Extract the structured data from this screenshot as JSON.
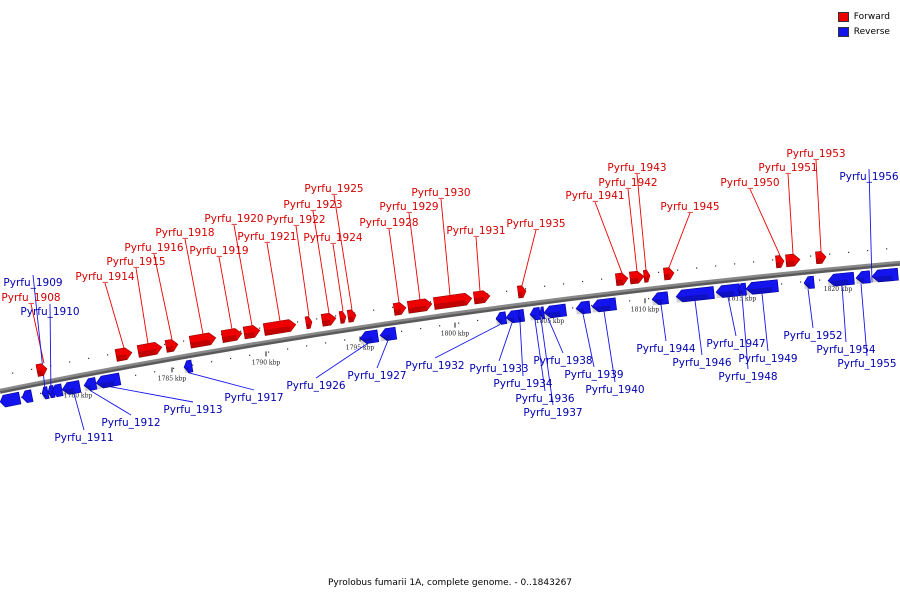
{
  "legend": {
    "forward_label": "Forward",
    "forward_color": "#ee0000",
    "reverse_label": "Reverse",
    "reverse_color": "#1414ee"
  },
  "caption": "Pyrolobus fumarii 1A, complete genome. - 0..1843267",
  "backbone_color": "#888888",
  "ticks": [
    {
      "label": "1780 kbp",
      "kbp": 1780
    },
    {
      "label": "1785 kbp",
      "kbp": 1785
    },
    {
      "label": "1790 kbp",
      "kbp": 1790
    },
    {
      "label": "1795 kbp",
      "kbp": 1795
    },
    {
      "label": "1800 kbp",
      "kbp": 1800
    },
    {
      "label": "1805 kbp",
      "kbp": 1805
    },
    {
      "label": "1810 kbp",
      "kbp": 1810
    },
    {
      "label": "1815 kbp",
      "kbp": 1815
    },
    {
      "label": "1820 kbp",
      "kbp": 1820
    }
  ],
  "genes": [
    {
      "name": "Pyrfu_1908",
      "strand": "forward"
    },
    {
      "name": "Pyrfu_1909",
      "strand": "reverse"
    },
    {
      "name": "Pyrfu_1910",
      "strand": "reverse"
    },
    {
      "name": "Pyrfu_1911",
      "strand": "reverse"
    },
    {
      "name": "Pyrfu_1912",
      "strand": "reverse"
    },
    {
      "name": "Pyrfu_1913",
      "strand": "reverse"
    },
    {
      "name": "Pyrfu_1914",
      "strand": "forward"
    },
    {
      "name": "Pyrfu_1915",
      "strand": "forward"
    },
    {
      "name": "Pyrfu_1916",
      "strand": "forward"
    },
    {
      "name": "Pyrfu_1917",
      "strand": "reverse"
    },
    {
      "name": "Pyrfu_1918",
      "strand": "forward"
    },
    {
      "name": "Pyrfu_1919",
      "strand": "forward"
    },
    {
      "name": "Pyrfu_1920",
      "strand": "forward"
    },
    {
      "name": "Pyrfu_1921",
      "strand": "forward"
    },
    {
      "name": "Pyrfu_1922",
      "strand": "forward"
    },
    {
      "name": "Pyrfu_1923",
      "strand": "forward"
    },
    {
      "name": "Pyrfu_1924",
      "strand": "forward"
    },
    {
      "name": "Pyrfu_1925",
      "strand": "forward"
    },
    {
      "name": "Pyrfu_1926",
      "strand": "reverse"
    },
    {
      "name": "Pyrfu_1927",
      "strand": "reverse"
    },
    {
      "name": "Pyrfu_1928",
      "strand": "forward"
    },
    {
      "name": "Pyrfu_1929",
      "strand": "forward"
    },
    {
      "name": "Pyrfu_1930",
      "strand": "forward"
    },
    {
      "name": "Pyrfu_1931",
      "strand": "forward"
    },
    {
      "name": "Pyrfu_1932",
      "strand": "reverse"
    },
    {
      "name": "Pyrfu_1933",
      "strand": "reverse"
    },
    {
      "name": "Pyrfu_1934",
      "strand": "reverse"
    },
    {
      "name": "Pyrfu_1935",
      "strand": "forward"
    },
    {
      "name": "Pyrfu_1936",
      "strand": "reverse"
    },
    {
      "name": "Pyrfu_1937",
      "strand": "reverse"
    },
    {
      "name": "Pyrfu_1938",
      "strand": "reverse"
    },
    {
      "name": "Pyrfu_1939",
      "strand": "reverse"
    },
    {
      "name": "Pyrfu_1940",
      "strand": "reverse"
    },
    {
      "name": "Pyrfu_1941",
      "strand": "forward"
    },
    {
      "name": "Pyrfu_1942",
      "strand": "forward"
    },
    {
      "name": "Pyrfu_1943",
      "strand": "forward"
    },
    {
      "name": "Pyrfu_1944",
      "strand": "reverse"
    },
    {
      "name": "Pyrfu_1945",
      "strand": "forward"
    },
    {
      "name": "Pyrfu_1946",
      "strand": "reverse"
    },
    {
      "name": "Pyrfu_1947",
      "strand": "reverse"
    },
    {
      "name": "Pyrfu_1948",
      "strand": "reverse"
    },
    {
      "name": "Pyrfu_1949",
      "strand": "reverse"
    },
    {
      "name": "Pyrfu_1950",
      "strand": "forward"
    },
    {
      "name": "Pyrfu_1951",
      "strand": "forward"
    },
    {
      "name": "Pyrfu_1952",
      "strand": "reverse"
    },
    {
      "name": "Pyrfu_1953",
      "strand": "forward"
    },
    {
      "name": "Pyrfu_1954",
      "strand": "reverse"
    },
    {
      "name": "Pyrfu_1955",
      "strand": "reverse"
    },
    {
      "name": "Pyrfu_1956",
      "strand": "reverse"
    }
  ]
}
